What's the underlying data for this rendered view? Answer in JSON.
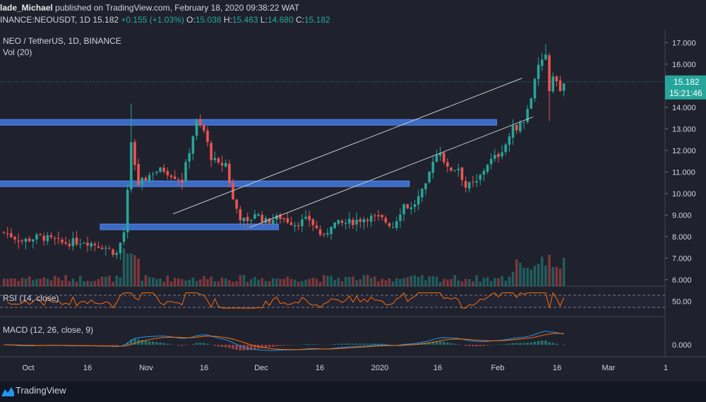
{
  "header": {
    "line1_author": "lade_Michael",
    "line1_rest": " published on TradingView.com, February 18, 2020 09:38:22 WAT",
    "line2_symbol": "INANCE:NEOUSDT, 1D 15.182",
    "line2_change": "+0.155 (+1.03%)",
    "line2_ohlc_o_label": "O:",
    "line2_ohlc_o": "15.038",
    "line2_ohlc_h_label": "H:",
    "line2_ohlc_h": "15.463",
    "line2_ohlc_l_label": "L:",
    "line2_ohlc_l": "14.680",
    "line2_ohlc_c_label": "C:",
    "line2_ohlc_c": "15.182"
  },
  "main_pane": {
    "title": "NEO / TetherUS, 1D, BINANCE",
    "vol_label": "Vol (20)"
  },
  "rsi_pane": {
    "title": "RSI (14, close)",
    "axis_label": "50.00"
  },
  "macd_pane": {
    "title": "MACD (12, 26, close, 9)",
    "axis_label": "0.000"
  },
  "price_badge": {
    "price": "15.182",
    "countdown": "15:21:46"
  },
  "footer": {
    "brand": "TradingView"
  },
  "colors": {
    "bg": "#1f222d",
    "up": "#26a69a",
    "down": "#ef5350",
    "zone": "#3d6fcf",
    "trend": "#c8c8c8",
    "rsi": "#ff6d00",
    "macd": "#2196f3",
    "signal": "#ff6d00"
  },
  "chart_data": [
    {
      "type": "candlestick",
      "title": "NEO / TetherUS, 1D, BINANCE",
      "y_ticks": [
        6,
        7,
        8,
        9,
        10,
        11,
        12,
        13,
        14,
        16,
        17
      ],
      "y_tick_labels": [
        "6.000",
        "7.000",
        "8.000",
        "9.000",
        "10.000",
        "11.000",
        "12.000",
        "13.000",
        "14.000",
        "16.000",
        "17.000"
      ],
      "x_tick_labels": [
        "Oct",
        "16",
        "Nov",
        "16",
        "Dec",
        "16",
        "2020",
        "16",
        "Feb",
        "16",
        "Mar",
        "1"
      ],
      "ylim": [
        5.7,
        17.6
      ],
      "last_price": 15.182,
      "resistance_zones": [
        {
          "price": 13.3,
          "from_day": -4,
          "to_day": 136
        },
        {
          "price": 10.45,
          "from_day": -4,
          "to_day": 112
        },
        {
          "price": 8.45,
          "from_day": 27,
          "to_day": 76
        }
      ],
      "channel_lines": [
        {
          "from": [
            47,
            9.05
          ],
          "to": [
            143,
            15.35
          ]
        },
        {
          "from": [
            68,
            8.42
          ],
          "to": [
            146,
            13.55
          ]
        }
      ]
    }
  ]
}
